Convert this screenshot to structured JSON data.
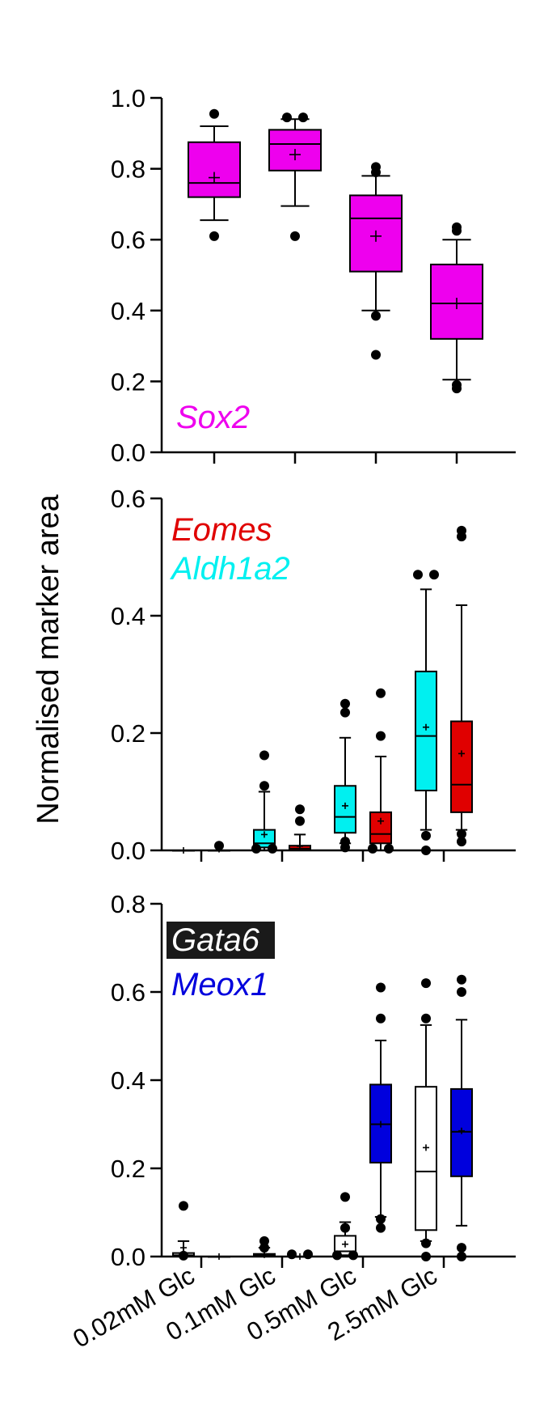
{
  "ylabel": "Normalised marker area",
  "categories": [
    "0.02mM Glc",
    "0.1mM Glc",
    "0.5mM Glc",
    "2.5mM Glc"
  ],
  "chart_data": [
    {
      "type": "box",
      "legend": [
        {
          "label": "Sox2",
          "color": "#ee00ee"
        }
      ],
      "ylim": [
        0,
        1.0
      ],
      "ticks": [
        "0.0",
        "0.2",
        "0.4",
        "0.6",
        "0.8",
        "1.0"
      ],
      "series": [
        {
          "marker": "Sox2",
          "fill": "#ee00ee",
          "boxes": [
            {
              "category": "0.02mM Glc",
              "min": 0.655,
              "q1": 0.72,
              "median": 0.76,
              "q3": 0.875,
              "max": 0.92,
              "mean": 0.775,
              "outliers": [
                0.61,
                0.955
              ]
            },
            {
              "category": "0.1mM Glc",
              "min": 0.695,
              "q1": 0.795,
              "median": 0.87,
              "q3": 0.91,
              "max": 0.94,
              "mean": 0.84,
              "outliers": [
                0.61,
                0.945,
                0.945
              ]
            },
            {
              "category": "0.5mM Glc",
              "min": 0.4,
              "q1": 0.51,
              "median": 0.66,
              "q3": 0.725,
              "max": 0.78,
              "mean": 0.61,
              "outliers": [
                0.385,
                0.275,
                0.79,
                0.805
              ]
            },
            {
              "category": "2.5mM Glc",
              "min": 0.205,
              "q1": 0.32,
              "median": 0.42,
              "q3": 0.53,
              "max": 0.6,
              "mean": 0.42,
              "outliers": [
                0.18,
                0.19,
                0.625,
                0.635
              ]
            }
          ]
        }
      ]
    },
    {
      "type": "box",
      "legend": [
        {
          "label": "Eomes",
          "color": "#e00000"
        },
        {
          "label": "Aldh1a2",
          "color": "#00f0f0"
        }
      ],
      "ylim": [
        0,
        0.6
      ],
      "ticks": [
        "0.0",
        "0.2",
        "0.4",
        "0.6"
      ],
      "series": [
        {
          "marker": "Aldh1a2",
          "fill": "#00f0f0",
          "boxes": [
            {
              "category": "0.02mM Glc",
              "min": 0.0,
              "q1": 0.0,
              "median": 0.0,
              "q3": 0.0,
              "max": 0.0,
              "mean": 0.0,
              "outliers": []
            },
            {
              "category": "0.1mM Glc",
              "min": 0.0,
              "q1": 0.005,
              "median": 0.012,
              "q3": 0.035,
              "max": 0.1,
              "mean": 0.027,
              "outliers": [
                0.003,
                0.003,
                0.11,
                0.162
              ]
            },
            {
              "category": "0.5mM Glc",
              "min": 0.012,
              "q1": 0.03,
              "median": 0.057,
              "q3": 0.11,
              "max": 0.192,
              "mean": 0.076,
              "outliers": [
                0.005,
                0.015,
                0.235,
                0.25
              ]
            },
            {
              "category": "2.5mM Glc",
              "min": 0.035,
              "q1": 0.102,
              "median": 0.195,
              "q3": 0.305,
              "max": 0.445,
              "mean": 0.21,
              "outliers": [
                0.0,
                0.025,
                0.47,
                0.47
              ]
            }
          ]
        },
        {
          "marker": "Eomes",
          "fill": "#e00000",
          "boxes": [
            {
              "category": "0.02mM Glc",
              "min": 0.0,
              "q1": 0.0,
              "median": 0.0,
              "q3": 0.0,
              "max": 0.0,
              "mean": 0.002,
              "outliers": [
                0.008
              ]
            },
            {
              "category": "0.1mM Glc",
              "min": 0.0,
              "q1": 0.0,
              "median": 0.003,
              "q3": 0.008,
              "max": 0.027,
              "mean": 0.007,
              "outliers": [
                0.05,
                0.07
              ]
            },
            {
              "category": "0.5mM Glc",
              "min": 0.0,
              "q1": 0.012,
              "median": 0.028,
              "q3": 0.065,
              "max": 0.16,
              "mean": 0.05,
              "outliers": [
                0.003,
                0.003,
                0.195,
                0.268
              ]
            },
            {
              "category": "2.5mM Glc",
              "min": 0.035,
              "q1": 0.065,
              "median": 0.112,
              "q3": 0.22,
              "max": 0.418,
              "mean": 0.165,
              "outliers": [
                0.015,
                0.028,
                0.535,
                0.545
              ]
            }
          ]
        }
      ]
    },
    {
      "type": "box",
      "legend": [
        {
          "label": "Gata6",
          "color": "#ffffff",
          "background": "#1a1a1a"
        },
        {
          "label": "Meox1",
          "color": "#0000dd"
        }
      ],
      "ylim": [
        0,
        0.8
      ],
      "ticks": [
        "0.0",
        "0.2",
        "0.4",
        "0.6",
        "0.8"
      ],
      "series": [
        {
          "marker": "Gata6",
          "fill": "#ffffff",
          "boxes": [
            {
              "category": "0.02mM Glc",
              "min": 0.0,
              "q1": 0.0,
              "median": 0.003,
              "q3": 0.008,
              "max": 0.035,
              "mean": 0.02,
              "outliers": [
                0.002,
                0.115
              ]
            },
            {
              "category": "0.1mM Glc",
              "min": 0.0,
              "q1": 0.0,
              "median": 0.003,
              "q3": 0.006,
              "max": 0.02,
              "mean": 0.004,
              "outliers": [
                0.02,
                0.035
              ]
            },
            {
              "category": "0.5mM Glc",
              "min": 0.0,
              "q1": 0.003,
              "median": 0.012,
              "q3": 0.047,
              "max": 0.078,
              "mean": 0.028,
              "outliers": [
                0.003,
                0.003,
                0.065,
                0.135
              ]
            },
            {
              "category": "2.5mM Glc",
              "min": 0.035,
              "q1": 0.06,
              "median": 0.193,
              "q3": 0.385,
              "max": 0.525,
              "mean": 0.247,
              "outliers": [
                0.0,
                0.03,
                0.54,
                0.62
              ]
            }
          ]
        },
        {
          "marker": "Meox1",
          "fill": "#0000dd",
          "boxes": [
            {
              "category": "0.02mM Glc",
              "min": 0.0,
              "q1": 0.0,
              "median": 0.0,
              "q3": 0.0,
              "max": 0.0,
              "mean": 0.0,
              "outliers": []
            },
            {
              "category": "0.1mM Glc",
              "min": 0.0,
              "q1": 0.0,
              "median": 0.0,
              "q3": 0.0,
              "max": 0.0,
              "mean": 0.0,
              "outliers": [
                0.005,
                0.005
              ]
            },
            {
              "category": "0.5mM Glc",
              "min": 0.09,
              "q1": 0.213,
              "median": 0.3,
              "q3": 0.39,
              "max": 0.49,
              "mean": 0.3,
              "outliers": [
                0.065,
                0.085,
                0.54,
                0.61
              ]
            },
            {
              "category": "2.5mM Glc",
              "min": 0.07,
              "q1": 0.182,
              "median": 0.283,
              "q3": 0.38,
              "max": 0.537,
              "mean": 0.285,
              "outliers": [
                0.0,
                0.02,
                0.6,
                0.628
              ]
            }
          ]
        }
      ]
    }
  ]
}
